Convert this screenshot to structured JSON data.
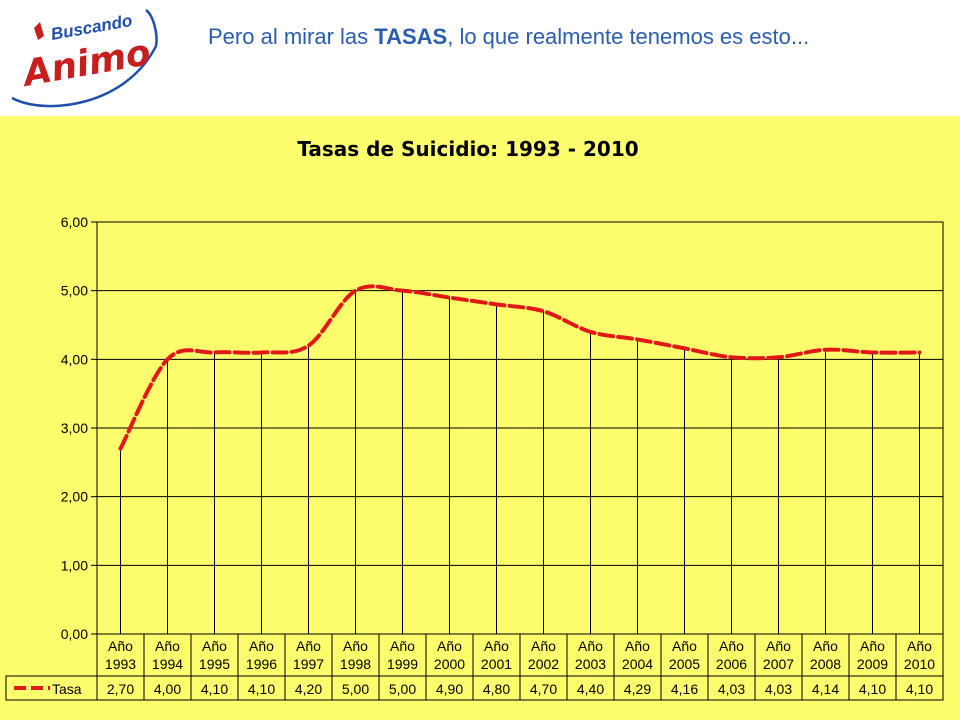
{
  "header": {
    "logo_top": "Buscando",
    "logo_main": "Animo",
    "heading_before": "Pero al mirar las ",
    "heading_bold": "TASAS",
    "heading_after": ", lo que realmente tenemos es esto..."
  },
  "colors": {
    "background_panel": "#fdfd6e",
    "line": "#e01818",
    "heading_text": "#2a5db0",
    "logo_blue": "#1f4fa8",
    "logo_red": "#c81e1e"
  },
  "chart_data": {
    "type": "line",
    "title": "Tasas de Suicidio: 1993 - 2010",
    "category_prefix": "Año",
    "categories": [
      "1993",
      "1994",
      "1995",
      "1996",
      "1997",
      "1998",
      "1999",
      "2000",
      "2001",
      "2002",
      "2003",
      "2004",
      "2005",
      "2006",
      "2007",
      "2008",
      "2009",
      "2010"
    ],
    "series": [
      {
        "name": "Tasa",
        "values": [
          2.7,
          4.0,
          4.1,
          4.1,
          4.2,
          5.0,
          5.0,
          4.9,
          4.8,
          4.7,
          4.4,
          4.29,
          4.16,
          4.03,
          4.03,
          4.14,
          4.1,
          4.1
        ],
        "labels": [
          "2,70",
          "4,00",
          "4,10",
          "4,10",
          "4,20",
          "5,00",
          "5,00",
          "4,90",
          "4,80",
          "4,70",
          "4,40",
          "4,29",
          "4,16",
          "4,03",
          "4,03",
          "4,14",
          "4,10",
          "4,10"
        ]
      }
    ],
    "y_ticks": [
      "0,00",
      "1,00",
      "2,00",
      "3,00",
      "4,00",
      "5,00",
      "6,00"
    ],
    "ylim": [
      0,
      6
    ],
    "grid": "horizontal",
    "drop_lines": true,
    "data_table": true,
    "line_style": "dashed-smooth"
  }
}
